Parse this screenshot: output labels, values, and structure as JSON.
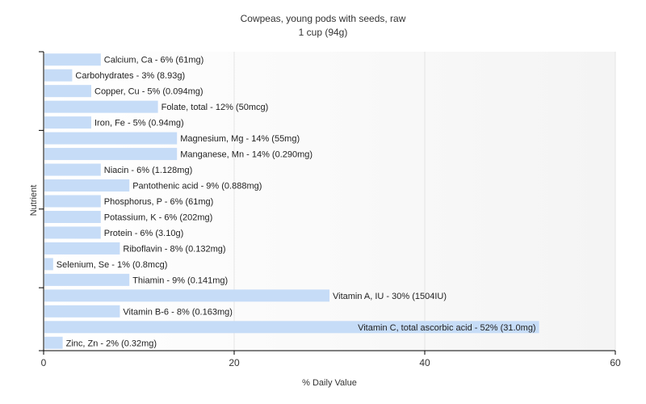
{
  "chart_data": {
    "type": "bar",
    "orientation": "horizontal",
    "title": "Cowpeas, young pods with seeds, raw",
    "subtitle": "1 cup (94g)",
    "xlabel": "% Daily Value",
    "ylabel": "Nutrient",
    "xlim": [
      0,
      60
    ],
    "xticks": [
      "0",
      "20",
      "40",
      "60"
    ],
    "grid": true,
    "legend": "none",
    "colors": {
      "bar": "#c6dcf7",
      "axis": "#000000",
      "grid": "#e4e4e4",
      "background_gradient": "#f4f4f4"
    },
    "categories": [
      "Calcium, Ca",
      "Carbohydrates",
      "Copper, Cu",
      "Folate, total",
      "Iron, Fe",
      "Magnesium, Mg",
      "Manganese, Mn",
      "Niacin",
      "Pantothenic acid",
      "Phosphorus, P",
      "Potassium, K",
      "Protein",
      "Riboflavin",
      "Selenium, Se",
      "Thiamin",
      "Vitamin A, IU",
      "Vitamin B-6",
      "Vitamin C, total ascorbic acid",
      "Zinc, Zn"
    ],
    "values": [
      6,
      3,
      5,
      12,
      5,
      14,
      14,
      6,
      9,
      6,
      6,
      6,
      8,
      1,
      9,
      30,
      8,
      52,
      2
    ],
    "bar_labels": [
      "Calcium, Ca - 6% (61mg)",
      "Carbohydrates - 3% (8.93g)",
      "Copper, Cu - 5% (0.094mg)",
      "Folate, total - 12% (50mcg)",
      "Iron, Fe - 5% (0.94mg)",
      "Magnesium, Mg - 14% (55mg)",
      "Manganese, Mn - 14% (0.290mg)",
      "Niacin - 6% (1.128mg)",
      "Pantothenic acid - 9% (0.888mg)",
      "Phosphorus, P - 6% (61mg)",
      "Potassium, K - 6% (202mg)",
      "Protein - 6% (3.10g)",
      "Riboflavin - 8% (0.132mg)",
      "Selenium, Se - 1% (0.8mcg)",
      "Thiamin - 9% (0.141mg)",
      "Vitamin A, IU - 30% (1504IU)",
      "Vitamin B-6 - 8% (0.163mg)",
      "Vitamin C, total ascorbic acid - 52% (31.0mg)",
      "Zinc, Zn - 2% (0.32mg)"
    ]
  }
}
